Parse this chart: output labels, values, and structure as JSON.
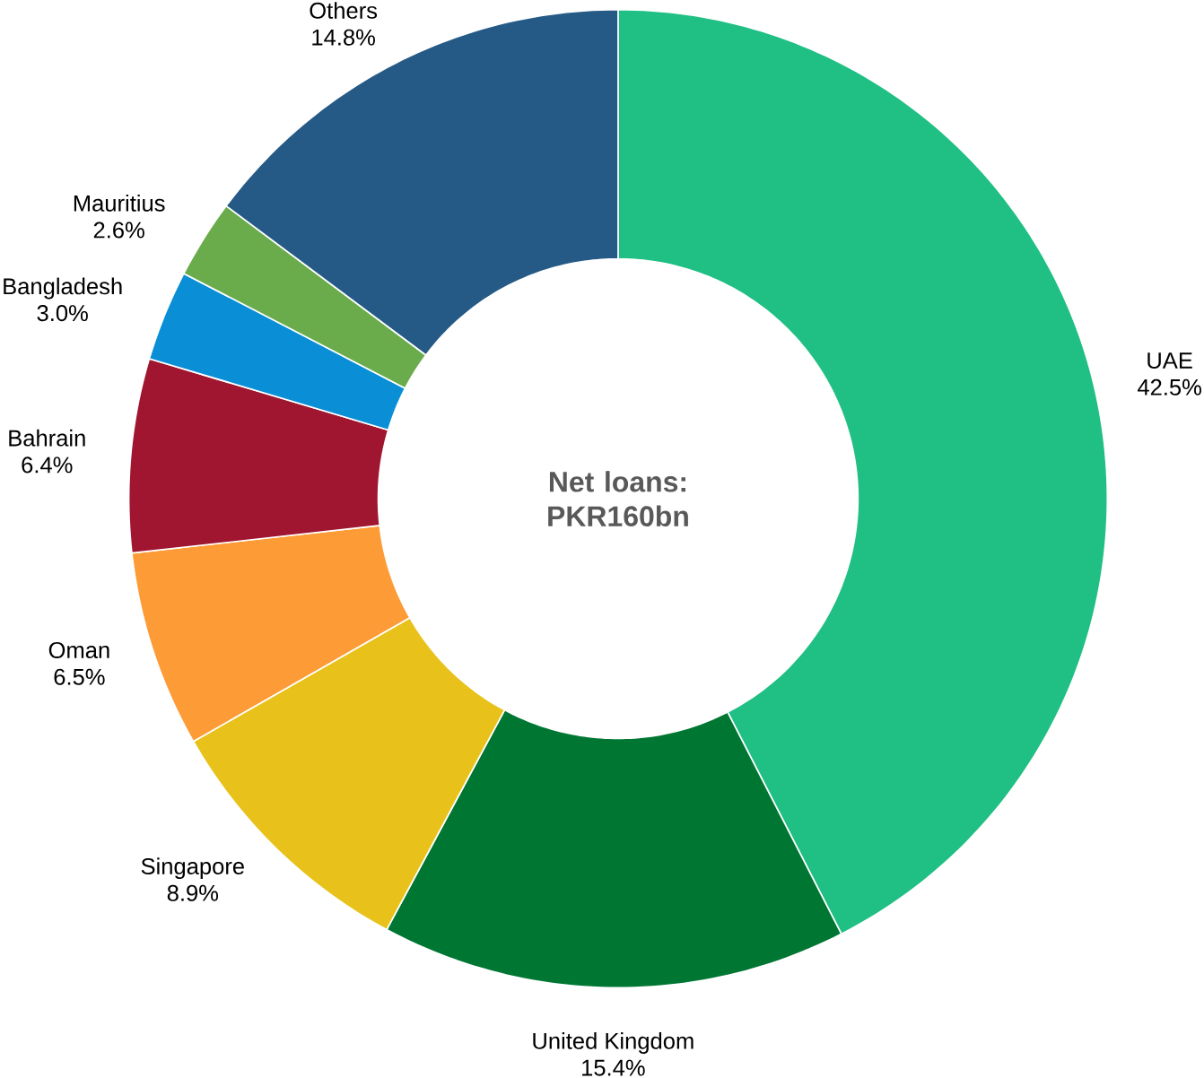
{
  "chart_data": {
    "type": "donut",
    "title": "Net loans: PKR160bn",
    "categories": [
      "UAE",
      "United Kingdom",
      "Singapore",
      "Oman",
      "Bahrain",
      "Bangladesh",
      "Mauritius",
      "Others"
    ],
    "values": [
      42.5,
      15.4,
      8.9,
      6.5,
      6.4,
      3.0,
      2.6,
      14.8
    ],
    "colors": [
      "#20bf84",
      "#007633",
      "#e8c21a",
      "#fd9b36",
      "#a01530",
      "#0a8fd6",
      "#6aac4c",
      "#255a86"
    ],
    "value_labels": [
      "42.5%",
      "15.4%",
      "8.9%",
      "6.5%",
      "6.4%",
      "3.0%",
      "2.6%",
      "14.8%"
    ]
  }
}
